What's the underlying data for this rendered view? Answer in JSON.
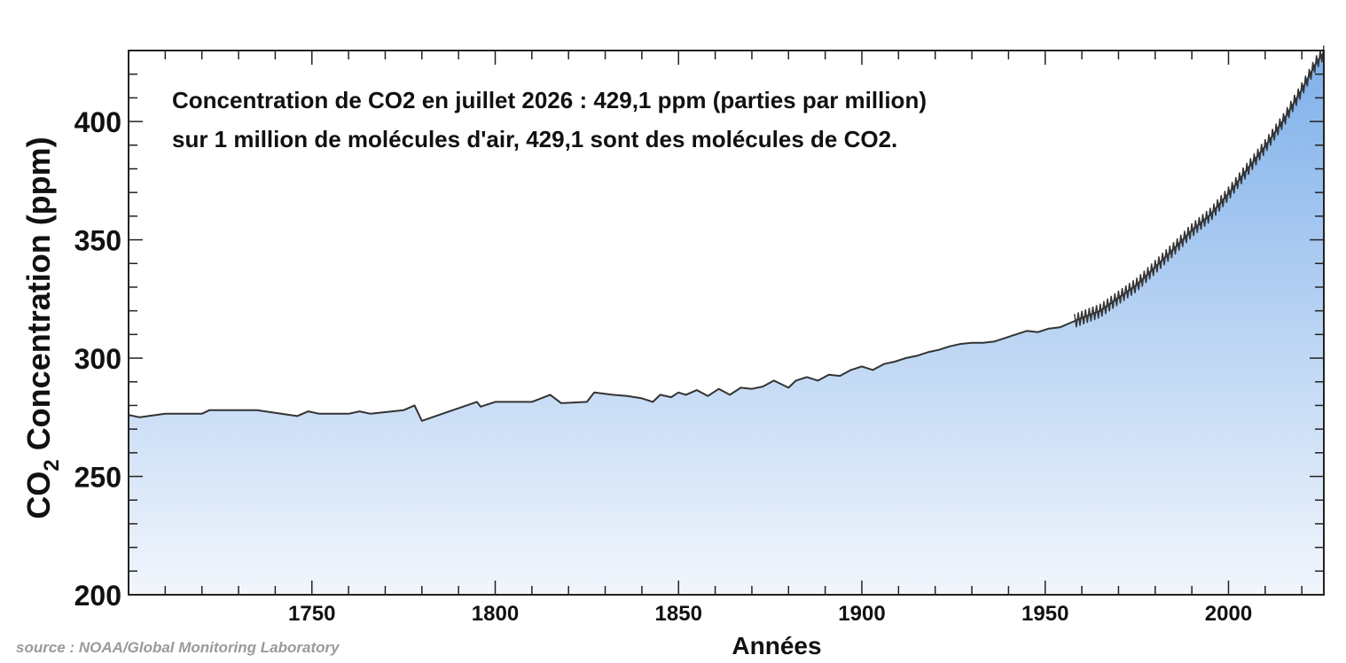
{
  "chart_data": {
    "type": "area",
    "annotation_line1": "Concentration de CO2 en juillet 2026 : 429,1 ppm (parties par million)",
    "annotation_line2": "sur 1 million de molécules d'air, 429,1 sont des molécules de CO2.",
    "xlabel": "Années",
    "ylabel_prefix": "CO",
    "ylabel_subscript": "2",
    "ylabel_suffix": " Concentration (ppm)",
    "source": "source : NOAA/Global Monitoring Laboratory",
    "xlim": [
      1700,
      2026
    ],
    "ylim": [
      200,
      430
    ],
    "x_ticks": [
      1750,
      1800,
      1850,
      1900,
      1950,
      2000
    ],
    "y_ticks": [
      200,
      250,
      300,
      350,
      400
    ],
    "grid": false,
    "line_color": "#333333",
    "fill_top_color": "#7fb0ea",
    "fill_bottom_color": "#f2f6fc",
    "series": [
      {
        "x": [
          1700,
          1703,
          1710,
          1720,
          1722,
          1735,
          1746,
          1749,
          1752,
          1760,
          1763,
          1766,
          1775,
          1778,
          1780,
          1795,
          1796,
          1800,
          1810,
          1815,
          1818,
          1825,
          1827,
          1832,
          1836,
          1840,
          1843,
          1845,
          1848,
          1850,
          1852,
          1855,
          1858,
          1861,
          1864,
          1867,
          1870,
          1873,
          1876,
          1880,
          1882,
          1885,
          1888,
          1891,
          1894,
          1897,
          1900,
          1903,
          1906,
          1909,
          1912,
          1915,
          1918,
          1921,
          1924,
          1927,
          1930,
          1933,
          1936,
          1939,
          1942,
          1945,
          1948,
          1951,
          1954,
          1957,
          1960,
          1965,
          1970,
          1975,
          1980,
          1985,
          1990,
          1995,
          2000,
          2005,
          2010,
          2015,
          2020,
          2024,
          2026
        ],
        "y": [
          276,
          275,
          276.5,
          276.5,
          278,
          278,
          275.5,
          277.5,
          276.5,
          276.5,
          277.5,
          276.5,
          278,
          280,
          273.5,
          281.5,
          279.5,
          281.5,
          281.5,
          284.5,
          281,
          281.5,
          285.5,
          284.5,
          284,
          283,
          281.5,
          284.5,
          283.5,
          285.5,
          284.5,
          286.5,
          284,
          287,
          284.5,
          287.5,
          287,
          288,
          290.5,
          287.5,
          290.5,
          292,
          290.5,
          293,
          292.5,
          295,
          296.5,
          295,
          297.5,
          298.5,
          300,
          301,
          302.5,
          303.5,
          305,
          306,
          306.5,
          306.5,
          307,
          308.5,
          310,
          311.5,
          311,
          312.5,
          313,
          315,
          317,
          320,
          325.5,
          331,
          338.5,
          346,
          354,
          360.5,
          369.5,
          379.5,
          389.5,
          400.5,
          413.5,
          425,
          429.1
        ]
      }
    ]
  }
}
